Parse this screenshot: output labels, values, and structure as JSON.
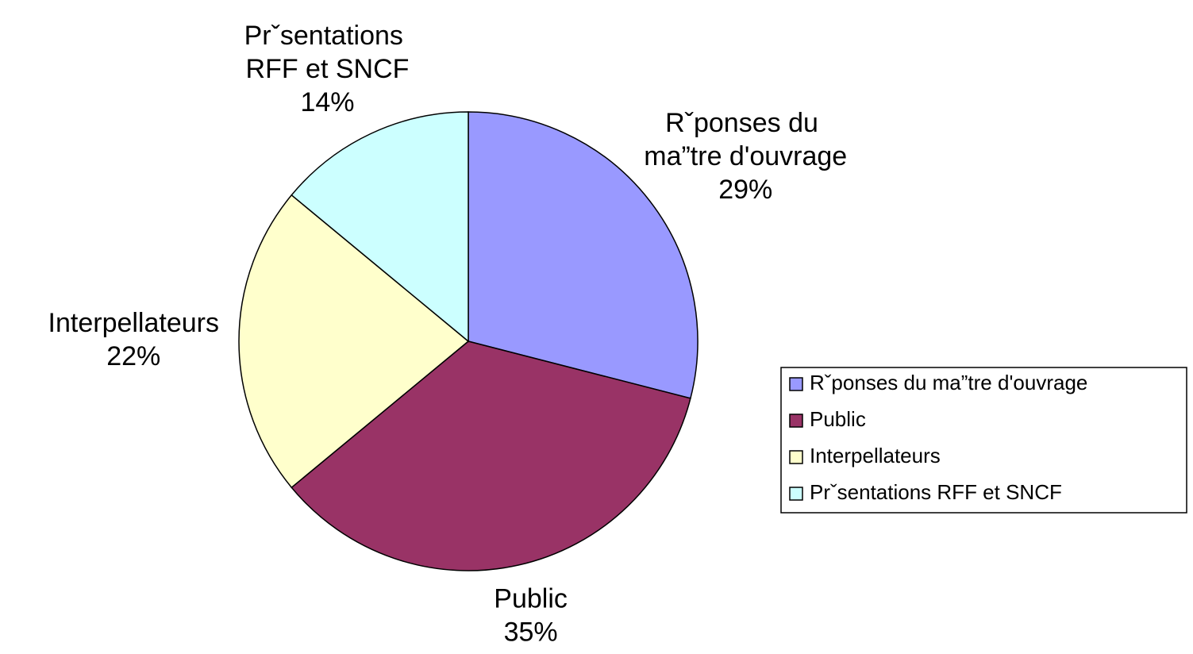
{
  "chart_data": {
    "type": "pie",
    "categories": [
      "Rˇponses du ma”tre d'ouvrage",
      "Public",
      "Interpellateurs",
      "Prˇsentations RFF et SNCF"
    ],
    "values": [
      29,
      35,
      22,
      14
    ],
    "value_labels": [
      "29%",
      "35%",
      "22%",
      "14%"
    ],
    "colors": [
      "#9999ff",
      "#993366",
      "#ffffcc",
      "#ccffff"
    ],
    "legend": "right"
  }
}
